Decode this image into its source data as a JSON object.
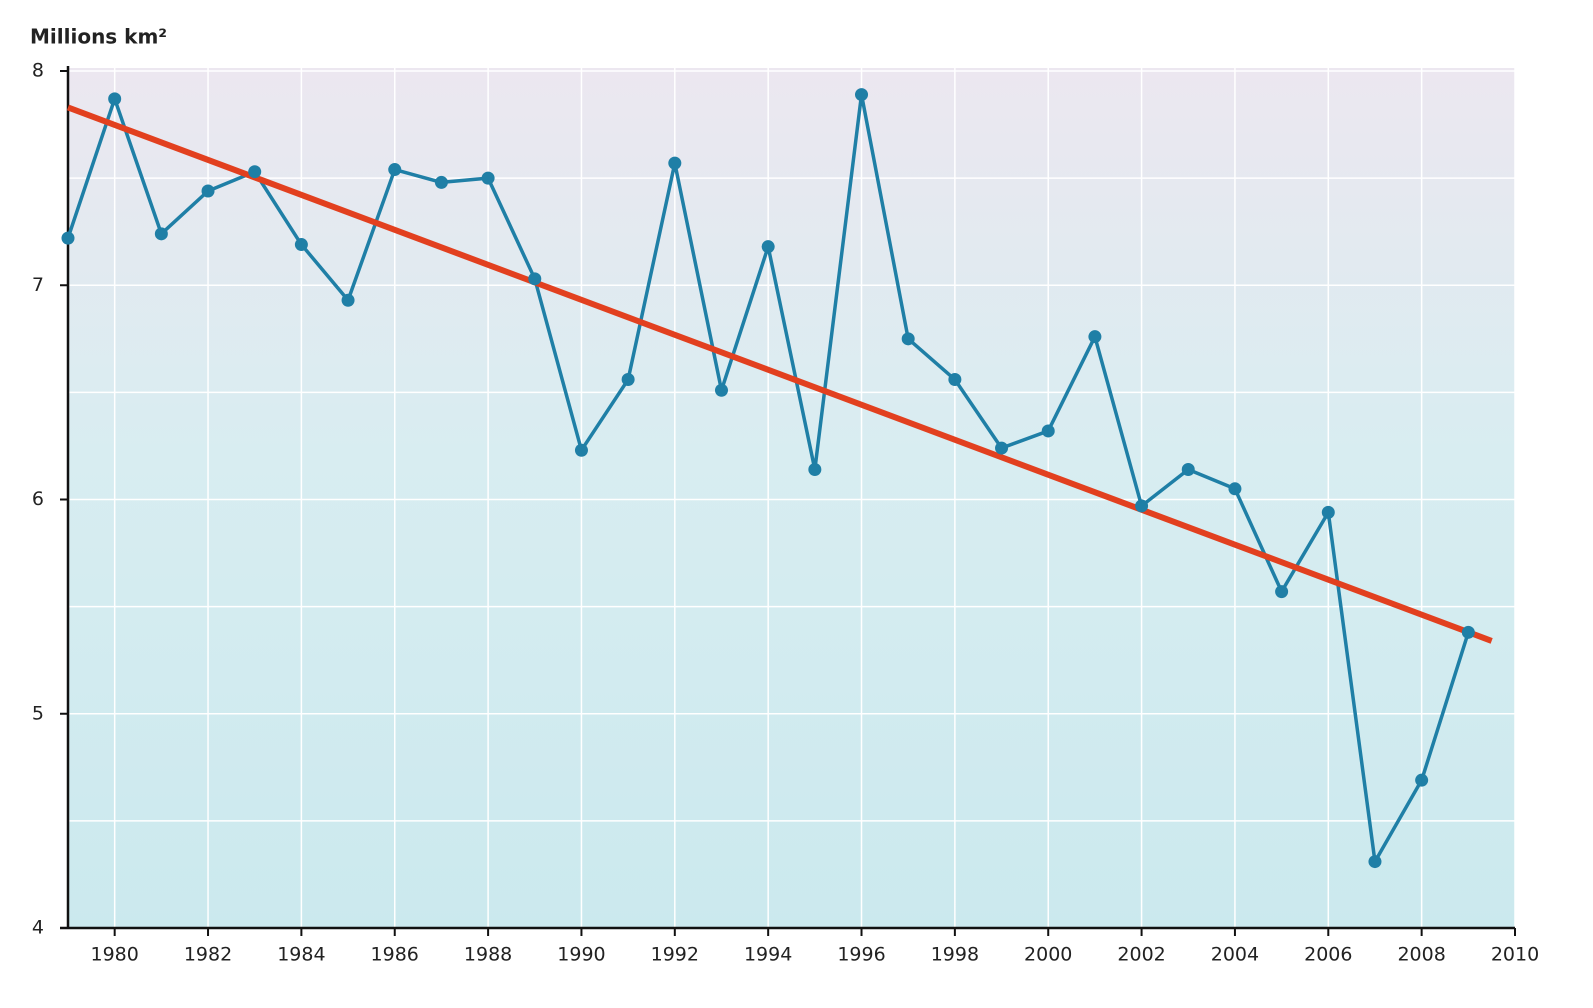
{
  "chart_data": {
    "type": "line",
    "y_label": "Millions km²",
    "x": [
      1979,
      1980,
      1981,
      1982,
      1983,
      1984,
      1985,
      1986,
      1987,
      1988,
      1989,
      1990,
      1991,
      1992,
      1993,
      1994,
      1995,
      1996,
      1997,
      1998,
      1999,
      2000,
      2001,
      2002,
      2003,
      2004,
      2005,
      2006,
      2007,
      2008,
      2009
    ],
    "values": [
      7.22,
      7.87,
      7.24,
      7.44,
      7.53,
      7.19,
      6.93,
      7.54,
      7.48,
      7.5,
      7.03,
      6.23,
      6.56,
      7.57,
      6.51,
      7.18,
      6.14,
      7.89,
      6.75,
      6.56,
      6.24,
      6.32,
      6.76,
      5.97,
      6.14,
      6.05,
      5.57,
      5.94,
      4.31,
      4.69,
      5.38
    ],
    "color": "#1f7fa6",
    "trend": {
      "x": [
        1979,
        2009.5
      ],
      "values": [
        7.83,
        5.34
      ],
      "color": "#e2401f"
    },
    "xlim": [
      1979,
      2010
    ],
    "xticks": [
      1980,
      1982,
      1984,
      1986,
      1988,
      1990,
      1992,
      1994,
      1996,
      1998,
      2000,
      2002,
      2004,
      2006,
      2008,
      2010
    ],
    "ylim": [
      4,
      8
    ],
    "yticks": [
      4,
      5,
      6,
      7,
      8
    ],
    "minor_yticks": [
      4.5,
      5.5,
      6.5,
      7.5
    ],
    "grid": true
  }
}
